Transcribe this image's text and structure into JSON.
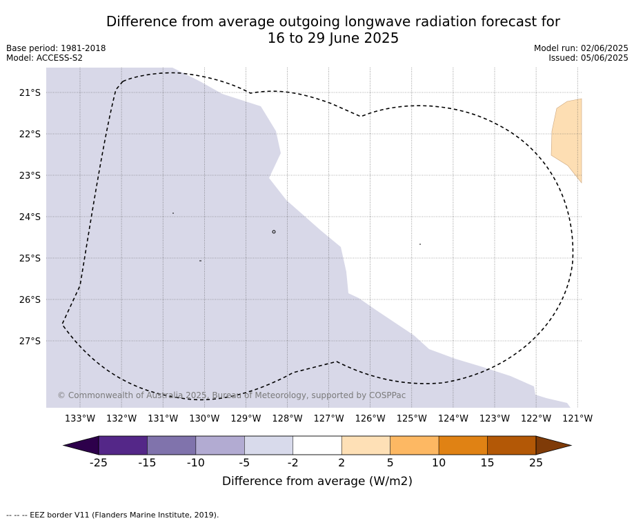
{
  "title": {
    "line1": "Difference from average outgoing longwave radiation forecast for",
    "line2": "16 to 29 June 2025"
  },
  "meta": {
    "base_period": "Base period: 1981-2018",
    "model": "Model: ACCESS-S2",
    "model_run": "Model run: 02/06/2025",
    "issued": "Issued: 05/06/2025"
  },
  "map": {
    "lon_labels": [
      "133°W",
      "132°W",
      "131°W",
      "130°W",
      "129°W",
      "128°W",
      "127°W",
      "126°W",
      "125°W",
      "124°W",
      "123°W",
      "122°W",
      "121°W"
    ],
    "lat_labels": [
      "21°S",
      "22°S",
      "23°S",
      "24°S",
      "25°S",
      "26°S",
      "27°S"
    ],
    "copyright": "© Commonwealth of Australia 2025, Bureau of Meteorology, supported by COSPPac",
    "colors": {
      "light_purple_fill": "#d8d8e8",
      "light_orange_fill": "#fddeb3",
      "grid": "#555555"
    }
  },
  "colorbar": {
    "ticks": [
      "-25",
      "-15",
      "-10",
      "-5",
      "-2",
      "2",
      "5",
      "10",
      "15",
      "25"
    ],
    "colors": [
      "#2d004b",
      "#542788",
      "#8073ac",
      "#b2abd2",
      "#d8daeb",
      "#ffffff",
      "#fee0b6",
      "#fdb863",
      "#e08214",
      "#b35806",
      "#7f3b08"
    ],
    "label": "Difference from average (W/m2)"
  },
  "footnote": "--  --  -- EEZ border V11 (Flanders Marine Institute, 2019)."
}
